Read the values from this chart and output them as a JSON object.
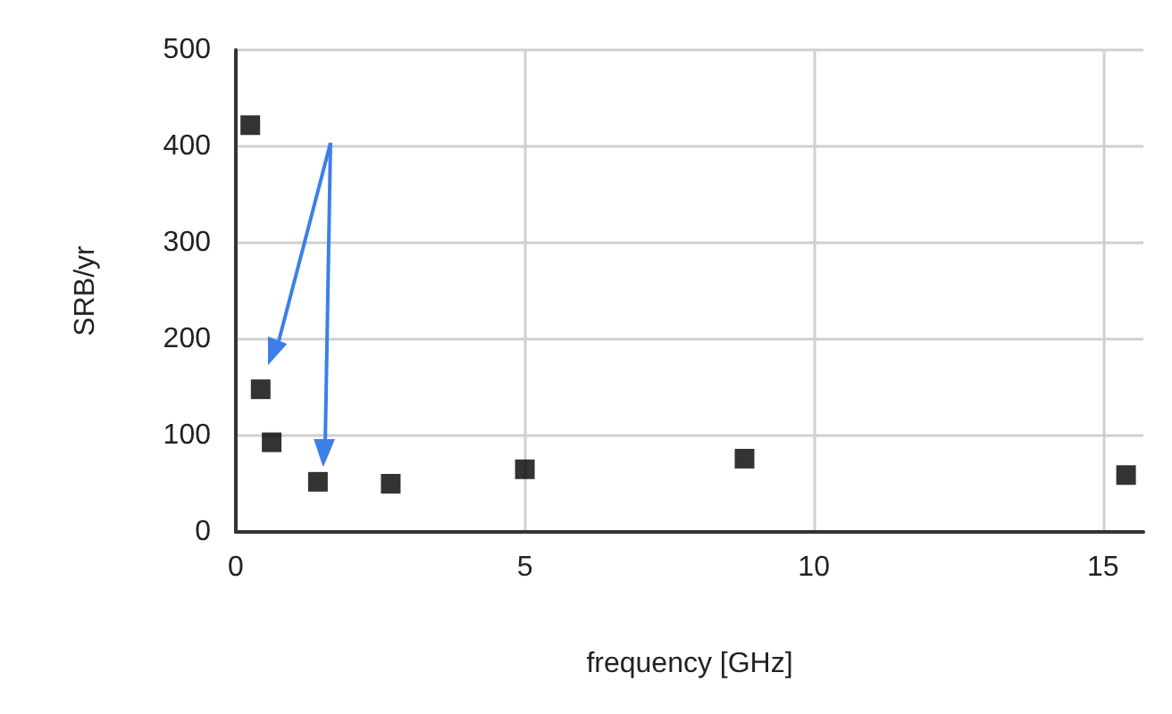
{
  "chart_data": {
    "type": "scatter",
    "xlabel": "frequency [GHz]",
    "ylabel": "SRB/yr",
    "x": [
      0.25,
      0.43,
      0.62,
      1.42,
      2.68,
      5.0,
      8.8,
      15.4
    ],
    "values": [
      422,
      148,
      93,
      52,
      50,
      65,
      76,
      59
    ],
    "color": "#000000",
    "marker": "square",
    "xlim": [
      0,
      15.7
    ],
    "xticks": [
      0,
      5,
      10,
      15
    ],
    "ylim": [
      0,
      500
    ],
    "yticks": [
      0,
      100,
      200,
      300,
      400,
      500
    ],
    "grid": true
  }
}
